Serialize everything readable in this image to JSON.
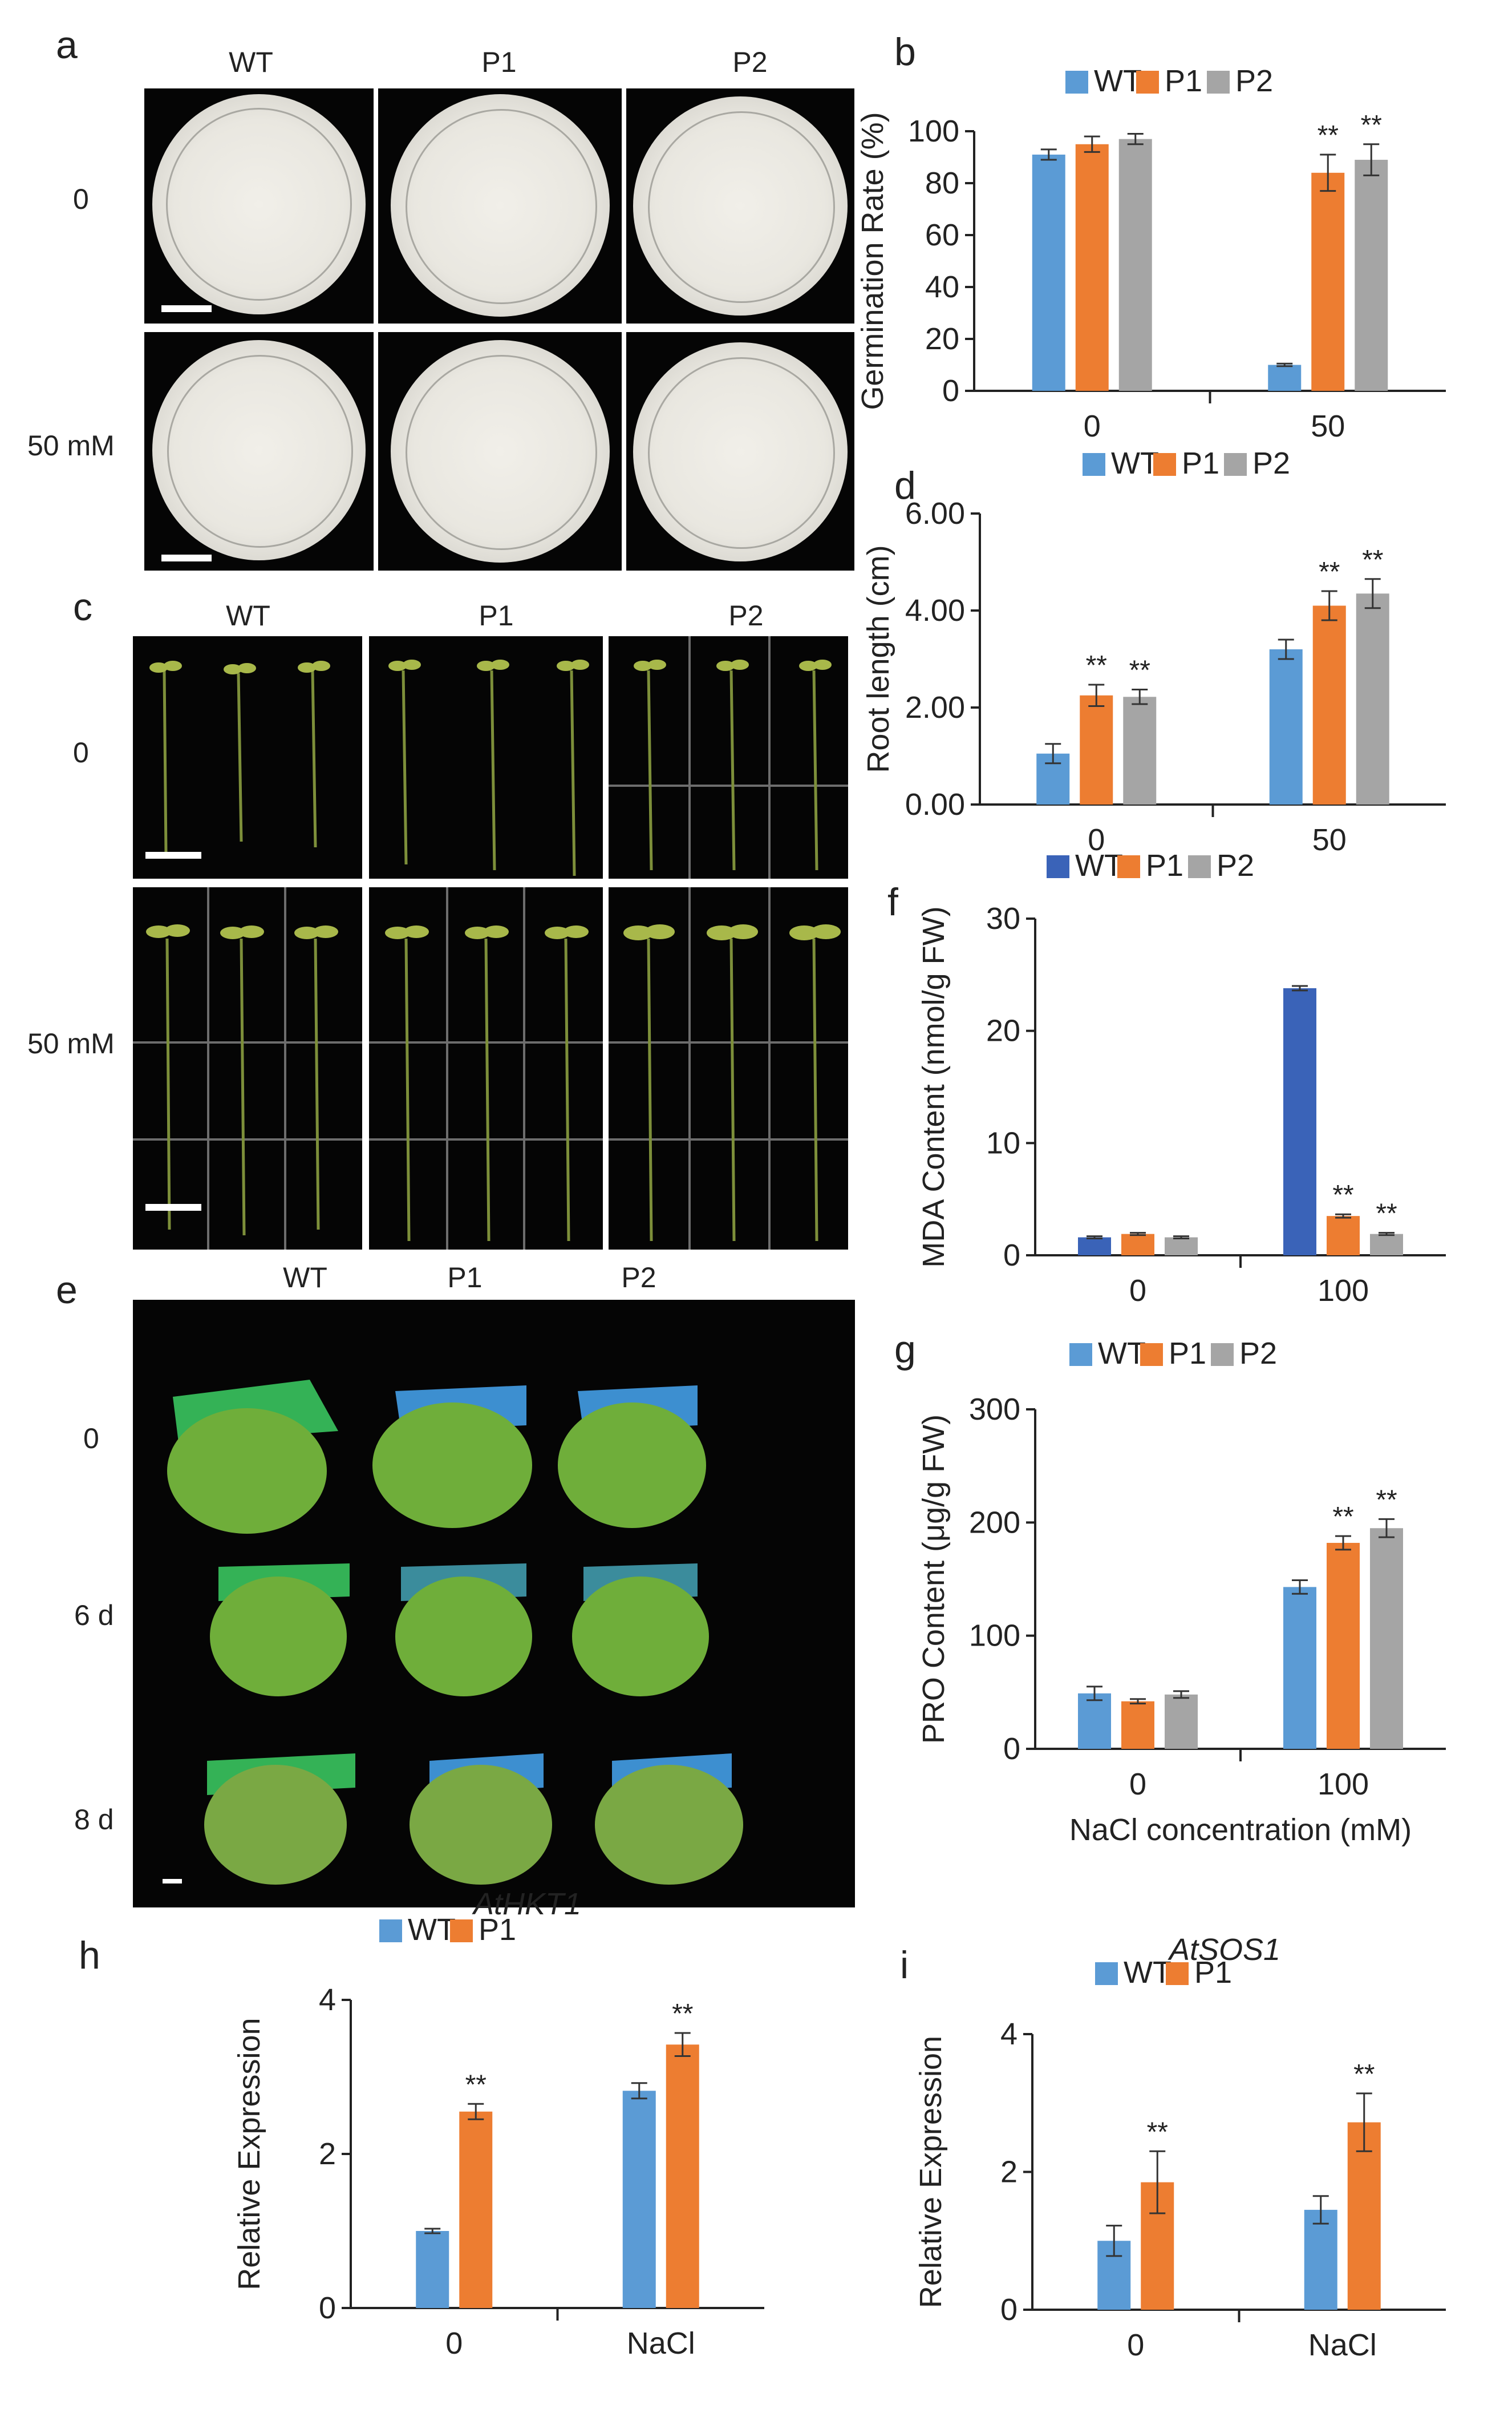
{
  "colors": {
    "wt": "#5B9BD5",
    "wt_dark": "#3A63B8",
    "p1": "#ED7D31",
    "p2": "#A5A5A5",
    "axis": "#222222"
  },
  "panel_letters": [
    "a",
    "b",
    "c",
    "d",
    "e",
    "f",
    "g",
    "h",
    "i"
  ],
  "panel_a": {
    "columns": [
      "WT",
      "P1",
      "P2"
    ],
    "rows": [
      "0",
      "50 mM"
    ]
  },
  "panel_c": {
    "columns": [
      "WT",
      "P1",
      "P2"
    ],
    "rows": [
      "0",
      "50 mM"
    ]
  },
  "panel_e": {
    "columns": [
      "WT",
      "P1",
      "P2"
    ],
    "rows": [
      "0",
      "6 d",
      "8 d"
    ]
  },
  "significance_mark": "**",
  "chart_data": [
    {
      "id": "b",
      "type": "bar",
      "ylabel": "Germination Rate (%)",
      "xlabel": "",
      "title": "",
      "categories": [
        "0",
        "50"
      ],
      "ylim": [
        0,
        100
      ],
      "yticks": [
        "0",
        "20",
        "40",
        "60",
        "80",
        "100"
      ],
      "legend": "top",
      "series": [
        {
          "name": "WT",
          "color": "#5B9BD5",
          "values": [
            91,
            10
          ],
          "errors": [
            2,
            0.5
          ],
          "sig": [
            "",
            ""
          ]
        },
        {
          "name": "P1",
          "color": "#ED7D31",
          "values": [
            95,
            84
          ],
          "errors": [
            3,
            7
          ],
          "sig": [
            "",
            "**"
          ]
        },
        {
          "name": "P2",
          "color": "#A5A5A5",
          "values": [
            97,
            89
          ],
          "errors": [
            2,
            6
          ],
          "sig": [
            "",
            "**"
          ]
        }
      ]
    },
    {
      "id": "d",
      "type": "bar",
      "ylabel": "Root length (cm)",
      "xlabel": "",
      "title": "",
      "categories": [
        "0",
        "50"
      ],
      "ylim": [
        0,
        6
      ],
      "yticks": [
        "0.00",
        "2.00",
        "4.00",
        "6.00"
      ],
      "legend": "top",
      "series": [
        {
          "name": "WT",
          "color": "#5B9BD5",
          "values": [
            1.05,
            3.2
          ],
          "errors": [
            0.2,
            0.2
          ],
          "sig": [
            "",
            ""
          ]
        },
        {
          "name": "P1",
          "color": "#ED7D31",
          "values": [
            2.25,
            4.1
          ],
          "errors": [
            0.22,
            0.3
          ],
          "sig": [
            "**",
            "**"
          ]
        },
        {
          "name": "P2",
          "color": "#A5A5A5",
          "values": [
            2.22,
            4.35
          ],
          "errors": [
            0.15,
            0.3
          ],
          "sig": [
            "**",
            "**"
          ]
        }
      ]
    },
    {
      "id": "f",
      "type": "bar",
      "ylabel": "MDA Content (nmol/g FW)",
      "xlabel": "",
      "title": "",
      "categories": [
        "0",
        "100"
      ],
      "ylim": [
        0,
        30
      ],
      "yticks": [
        "0",
        "10",
        "20",
        "30"
      ],
      "legend": "top",
      "series": [
        {
          "name": "WT",
          "color": "#3A63B8",
          "values": [
            1.6,
            23.8
          ],
          "errors": [
            0.1,
            0.2
          ],
          "sig": [
            "",
            ""
          ]
        },
        {
          "name": "P1",
          "color": "#ED7D31",
          "values": [
            1.9,
            3.5
          ],
          "errors": [
            0.1,
            0.15
          ],
          "sig": [
            "",
            "**"
          ]
        },
        {
          "name": "P2",
          "color": "#A5A5A5",
          "values": [
            1.6,
            1.9
          ],
          "errors": [
            0.1,
            0.1
          ],
          "sig": [
            "",
            "**"
          ]
        }
      ]
    },
    {
      "id": "g",
      "type": "bar",
      "ylabel": "PRO Content (μg/g FW)",
      "xlabel": "NaCl concentration (mM)",
      "title": "",
      "categories": [
        "0",
        "100"
      ],
      "ylim": [
        0,
        300
      ],
      "yticks": [
        "0",
        "100",
        "200",
        "300"
      ],
      "legend": "top",
      "series": [
        {
          "name": "WT",
          "color": "#5B9BD5",
          "values": [
            49,
            143
          ],
          "errors": [
            6,
            6
          ],
          "sig": [
            "",
            ""
          ]
        },
        {
          "name": "P1",
          "color": "#ED7D31",
          "values": [
            42,
            182
          ],
          "errors": [
            2,
            6
          ],
          "sig": [
            "",
            "**"
          ]
        },
        {
          "name": "P2",
          "color": "#A5A5A5",
          "values": [
            48,
            195
          ],
          "errors": [
            3,
            8
          ],
          "sig": [
            "",
            "**"
          ]
        }
      ]
    },
    {
      "id": "h",
      "type": "bar",
      "ylabel": "Relative Expression",
      "xlabel": "",
      "title": "AtHKT1",
      "categories": [
        "0",
        "NaCl"
      ],
      "ylim": [
        0,
        4
      ],
      "yticks": [
        "0",
        "2",
        "4"
      ],
      "legend": "top",
      "series": [
        {
          "name": "WT",
          "color": "#5B9BD5",
          "values": [
            1.0,
            2.82
          ],
          "errors": [
            0.03,
            0.1
          ],
          "sig": [
            "",
            ""
          ]
        },
        {
          "name": "P1",
          "color": "#ED7D31",
          "values": [
            2.55,
            3.42
          ],
          "errors": [
            0.1,
            0.15
          ],
          "sig": [
            "**",
            "**"
          ]
        }
      ]
    },
    {
      "id": "i",
      "type": "bar",
      "ylabel": "Relative Expression",
      "xlabel": "",
      "title": "AtSOS1",
      "categories": [
        "0",
        "NaCl"
      ],
      "ylim": [
        0,
        4
      ],
      "yticks": [
        "0",
        "2",
        "4"
      ],
      "legend": "top",
      "series": [
        {
          "name": "WT",
          "color": "#5B9BD5",
          "values": [
            1.0,
            1.45
          ],
          "errors": [
            0.22,
            0.2
          ],
          "sig": [
            "",
            ""
          ]
        },
        {
          "name": "P1",
          "color": "#ED7D31",
          "values": [
            1.85,
            2.72
          ],
          "errors": [
            0.45,
            0.42
          ],
          "sig": [
            "**",
            "**"
          ]
        }
      ]
    }
  ]
}
